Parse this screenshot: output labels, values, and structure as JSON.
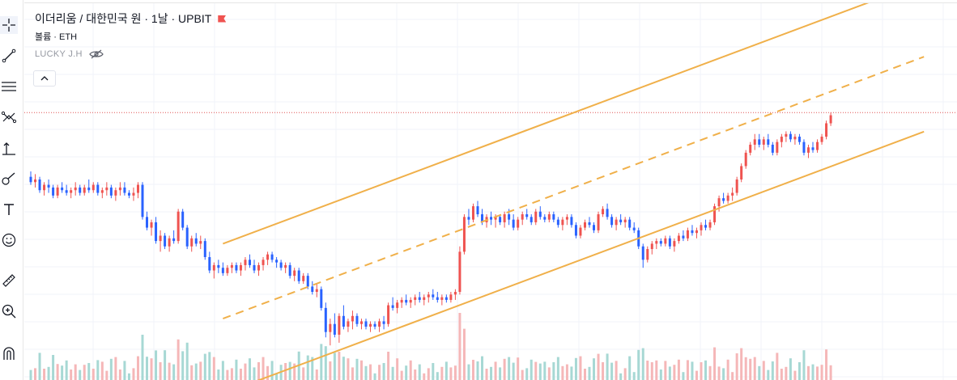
{
  "legend": {
    "title": "이더리움 / 대한민국 원 · 1날 · UPBIT",
    "volume": "볼륨 · ETH",
    "user": "LUCKY J.H"
  },
  "toolbar": {
    "tools": [
      "crosshair",
      "trend-line",
      "fib-retracement",
      "pattern",
      "prediction",
      "brush",
      "text",
      "emoji",
      "measure",
      "zoom-in",
      "magnet"
    ]
  },
  "colors": {
    "up": "#ef5350",
    "down": "#2962ff",
    "channel": "#f0b04a",
    "vol_up": "#f5b7b8",
    "vol_down": "#a7d8d4",
    "price_line": "#e05252"
  },
  "chart_data": {
    "type": "candlestick",
    "title": "이더리움 / 대한민국 원 · 1날 · UPBIT",
    "pane_overlay": "볼륨 · ETH",
    "grid": true,
    "price_range": [
      0,
      100
    ],
    "note": "price values estimated in relative units (0-100); axis values are not visible in the screenshot",
    "candles": [
      [
        72,
        74,
        69,
        70
      ],
      [
        70,
        73,
        68,
        71
      ],
      [
        71,
        72,
        66,
        67
      ],
      [
        67,
        70,
        65,
        69
      ],
      [
        69,
        71,
        66,
        68
      ],
      [
        68,
        69,
        64,
        65
      ],
      [
        65,
        69,
        64,
        68
      ],
      [
        68,
        70,
        66,
        67
      ],
      [
        67,
        69,
        65,
        66
      ],
      [
        66,
        68,
        64,
        67
      ],
      [
        67,
        70,
        65,
        68
      ],
      [
        68,
        69,
        65,
        66
      ],
      [
        66,
        69,
        65,
        68
      ],
      [
        68,
        71,
        66,
        67
      ],
      [
        67,
        70,
        66,
        69
      ],
      [
        69,
        70,
        65,
        66
      ],
      [
        66,
        68,
        64,
        67
      ],
      [
        67,
        70,
        65,
        68
      ],
      [
        68,
        69,
        64,
        65
      ],
      [
        65,
        68,
        63,
        67
      ],
      [
        67,
        70,
        65,
        68
      ],
      [
        68,
        70,
        65,
        66
      ],
      [
        66,
        67,
        64,
        65
      ],
      [
        65,
        68,
        63,
        66
      ],
      [
        66,
        70,
        64,
        69
      ],
      [
        69,
        70,
        56,
        57
      ],
      [
        57,
        59,
        52,
        53
      ],
      [
        53,
        56,
        50,
        55
      ],
      [
        55,
        57,
        47,
        48
      ],
      [
        48,
        52,
        44,
        50
      ],
      [
        50,
        51,
        45,
        46
      ],
      [
        46,
        50,
        44,
        49
      ],
      [
        49,
        52,
        47,
        48
      ],
      [
        48,
        60,
        47,
        59
      ],
      [
        59,
        60,
        52,
        53
      ],
      [
        53,
        54,
        45,
        46
      ],
      [
        46,
        50,
        44,
        49
      ],
      [
        49,
        51,
        46,
        47
      ],
      [
        47,
        50,
        45,
        48
      ],
      [
        48,
        49,
        41,
        42
      ],
      [
        42,
        44,
        36,
        37
      ],
      [
        37,
        40,
        34,
        39
      ],
      [
        39,
        41,
        36,
        38
      ],
      [
        38,
        40,
        35,
        36
      ],
      [
        36,
        39,
        35,
        38
      ],
      [
        38,
        40,
        36,
        39
      ],
      [
        39,
        40,
        36,
        37
      ],
      [
        37,
        40,
        35,
        39
      ],
      [
        39,
        42,
        37,
        41
      ],
      [
        41,
        43,
        38,
        39
      ],
      [
        39,
        41,
        36,
        37
      ],
      [
        37,
        40,
        35,
        39
      ],
      [
        39,
        42,
        37,
        41
      ],
      [
        41,
        44,
        39,
        43
      ],
      [
        43,
        44,
        40,
        41
      ],
      [
        41,
        42,
        38,
        40
      ],
      [
        40,
        41,
        37,
        38
      ],
      [
        38,
        40,
        36,
        39
      ],
      [
        39,
        40,
        34,
        35
      ],
      [
        35,
        38,
        33,
        37
      ],
      [
        37,
        38,
        32,
        33
      ],
      [
        33,
        36,
        32,
        35
      ],
      [
        35,
        36,
        30,
        31
      ],
      [
        31,
        33,
        28,
        29
      ],
      [
        29,
        32,
        27,
        30
      ],
      [
        30,
        31,
        22,
        23
      ],
      [
        23,
        25,
        12,
        14
      ],
      [
        14,
        19,
        9,
        17
      ],
      [
        17,
        21,
        12,
        13
      ],
      [
        13,
        21,
        10,
        20
      ],
      [
        20,
        24,
        15,
        16
      ],
      [
        16,
        19,
        14,
        18
      ],
      [
        18,
        22,
        15,
        20
      ],
      [
        20,
        21,
        16,
        17
      ],
      [
        17,
        19,
        15,
        18
      ],
      [
        18,
        19,
        15,
        16
      ],
      [
        16,
        18,
        14,
        17
      ],
      [
        17,
        18,
        15,
        16
      ],
      [
        16,
        19,
        14,
        18
      ],
      [
        18,
        20,
        15,
        17
      ],
      [
        17,
        25,
        16,
        24
      ],
      [
        24,
        27,
        22,
        23
      ],
      [
        23,
        26,
        21,
        25
      ],
      [
        25,
        27,
        23,
        26
      ],
      [
        26,
        28,
        24,
        25
      ],
      [
        25,
        27,
        23,
        26
      ],
      [
        26,
        28,
        24,
        27
      ],
      [
        27,
        29,
        25,
        26
      ],
      [
        26,
        28,
        24,
        27
      ],
      [
        27,
        29,
        25,
        28
      ],
      [
        28,
        30,
        26,
        27
      ],
      [
        27,
        29,
        25,
        26
      ],
      [
        26,
        28,
        24,
        27
      ],
      [
        27,
        28,
        25,
        26
      ],
      [
        26,
        29,
        25,
        28
      ],
      [
        28,
        30,
        26,
        29
      ],
      [
        29,
        46,
        28,
        44
      ],
      [
        44,
        58,
        43,
        57
      ],
      [
        57,
        60,
        54,
        56
      ],
      [
        56,
        62,
        55,
        61
      ],
      [
        61,
        63,
        57,
        58
      ],
      [
        58,
        60,
        54,
        55
      ],
      [
        55,
        58,
        53,
        57
      ],
      [
        57,
        59,
        54,
        56
      ],
      [
        56,
        58,
        53,
        57
      ],
      [
        57,
        58,
        54,
        55
      ],
      [
        55,
        59,
        53,
        58
      ],
      [
        58,
        60,
        54,
        56
      ],
      [
        56,
        58,
        52,
        53
      ],
      [
        53,
        57,
        52,
        56
      ],
      [
        56,
        59,
        54,
        58
      ],
      [
        58,
        60,
        56,
        57
      ],
      [
        57,
        58,
        54,
        55
      ],
      [
        55,
        60,
        54,
        59
      ],
      [
        59,
        61,
        56,
        57
      ],
      [
        57,
        58,
        55,
        56
      ],
      [
        56,
        59,
        55,
        58
      ],
      [
        58,
        59,
        55,
        56
      ],
      [
        56,
        57,
        53,
        54
      ],
      [
        54,
        57,
        52,
        56
      ],
      [
        56,
        58,
        54,
        57
      ],
      [
        57,
        58,
        53,
        54
      ],
      [
        54,
        55,
        49,
        50
      ],
      [
        50,
        54,
        49,
        53
      ],
      [
        53,
        56,
        52,
        55
      ],
      [
        55,
        57,
        53,
        54
      ],
      [
        54,
        55,
        51,
        52
      ],
      [
        52,
        59,
        51,
        58
      ],
      [
        58,
        61,
        57,
        60
      ],
      [
        60,
        62,
        56,
        57
      ],
      [
        57,
        58,
        53,
        54
      ],
      [
        54,
        57,
        52,
        56
      ],
      [
        56,
        58,
        54,
        55
      ],
      [
        55,
        57,
        53,
        56
      ],
      [
        56,
        57,
        52,
        53
      ],
      [
        53,
        55,
        51,
        52
      ],
      [
        52,
        53,
        45,
        46
      ],
      [
        46,
        47,
        38,
        41
      ],
      [
        41,
        46,
        40,
        45
      ],
      [
        45,
        48,
        43,
        47
      ],
      [
        47,
        49,
        45,
        48
      ],
      [
        48,
        49,
        46,
        47
      ],
      [
        47,
        50,
        46,
        49
      ],
      [
        49,
        50,
        45,
        46
      ],
      [
        46,
        49,
        44,
        48
      ],
      [
        48,
        51,
        47,
        50
      ],
      [
        50,
        52,
        48,
        49
      ],
      [
        49,
        53,
        48,
        52
      ],
      [
        52,
        54,
        50,
        51
      ],
      [
        51,
        53,
        49,
        52
      ],
      [
        52,
        55,
        50,
        54
      ],
      [
        54,
        56,
        52,
        53
      ],
      [
        53,
        56,
        52,
        55
      ],
      [
        55,
        62,
        54,
        61
      ],
      [
        61,
        65,
        59,
        64
      ],
      [
        64,
        66,
        62,
        63
      ],
      [
        63,
        66,
        62,
        65
      ],
      [
        65,
        68,
        63,
        66
      ],
      [
        66,
        72,
        65,
        71
      ],
      [
        71,
        77,
        70,
        76
      ],
      [
        76,
        82,
        75,
        81
      ],
      [
        81,
        85,
        80,
        84
      ],
      [
        84,
        88,
        82,
        86
      ],
      [
        86,
        88,
        83,
        84
      ],
      [
        84,
        87,
        82,
        86
      ],
      [
        86,
        88,
        83,
        84
      ],
      [
        84,
        85,
        80,
        81
      ],
      [
        81,
        86,
        80,
        85
      ],
      [
        85,
        88,
        83,
        87
      ],
      [
        87,
        89,
        85,
        88
      ],
      [
        88,
        89,
        85,
        86
      ],
      [
        86,
        88,
        84,
        87
      ],
      [
        87,
        88,
        84,
        85
      ],
      [
        85,
        86,
        80,
        81
      ],
      [
        81,
        84,
        79,
        83
      ],
      [
        83,
        85,
        81,
        82
      ],
      [
        82,
        86,
        81,
        85
      ],
      [
        85,
        88,
        84,
        87
      ],
      [
        87,
        93,
        86,
        92
      ],
      [
        92,
        96,
        91,
        95
      ]
    ],
    "channel": {
      "upper": {
        "from_index": 43,
        "from_price": 47,
        "to_index": 160,
        "to_price": 120
      },
      "middle": {
        "from_index": 43,
        "from_price": 19,
        "to_index": 160,
        "to_price": 92,
        "style": "dashed"
      },
      "lower": {
        "from_index": 43,
        "from_price": -9,
        "to_index": 160,
        "to_price": 64
      }
    },
    "current_price_line": 96
  }
}
